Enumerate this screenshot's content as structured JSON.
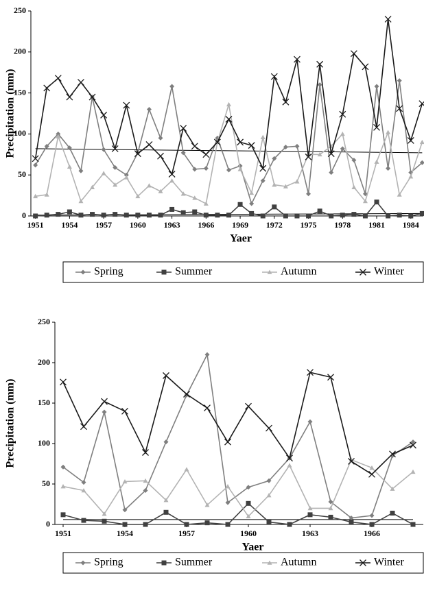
{
  "chart_data": [
    {
      "type": "line",
      "x_label": "Yaer",
      "y_label": "Precipitation (mm)",
      "x": [
        1951,
        1952,
        1953,
        1954,
        1955,
        1956,
        1957,
        1958,
        1959,
        1960,
        1961,
        1962,
        1963,
        1964,
        1965,
        1966,
        1967,
        1968,
        1969,
        1970,
        1971,
        1972,
        1973,
        1974,
        1975,
        1976,
        1977,
        1978,
        1979,
        1980,
        1981,
        1982,
        1983,
        1984,
        1985
      ],
      "series": [
        {
          "name": "Spring",
          "color": "#7f7f7f",
          "marker": "diamond",
          "values": [
            62,
            85,
            100,
            83,
            55,
            145,
            81,
            59,
            50,
            77,
            130,
            95,
            158,
            77,
            57,
            58,
            95,
            56,
            61,
            15,
            43,
            70,
            84,
            85,
            27,
            160,
            53,
            82,
            68,
            27,
            158,
            58,
            165,
            53,
            65
          ]
        },
        {
          "name": "Summer",
          "color": "#404040",
          "marker": "square",
          "values": [
            0,
            1,
            2,
            5,
            1,
            2,
            1,
            2,
            1,
            1,
            1,
            1,
            8,
            4,
            5,
            1,
            1,
            1,
            14,
            3,
            0,
            11,
            0,
            0,
            0,
            6,
            0,
            1,
            2,
            0,
            17,
            0,
            1,
            0,
            3
          ]
        },
        {
          "name": "Autumn",
          "color": "#b3b3b3",
          "marker": "triangle",
          "values": [
            24,
            26,
            97,
            60,
            18,
            35,
            52,
            38,
            47,
            24,
            37,
            30,
            43,
            27,
            22,
            15,
            90,
            136,
            57,
            28,
            96,
            38,
            36,
            42,
            75,
            75,
            85,
            100,
            35,
            18,
            66,
            102,
            26,
            48,
            90
          ]
        },
        {
          "name": "Winter",
          "color": "#1a1a1a",
          "marker": "x",
          "values": [
            70,
            156,
            168,
            145,
            163,
            145,
            123,
            82,
            135,
            76,
            87,
            73,
            51,
            107,
            85,
            75,
            90,
            118,
            90,
            86,
            58,
            170,
            139,
            191,
            72,
            185,
            76,
            124,
            198,
            182,
            108,
            240,
            131,
            92,
            137
          ]
        }
      ],
      "trendlines": [
        {
          "x": [
            1951,
            1985
          ],
          "values": [
            82,
            77
          ]
        },
        {
          "x": [
            1951,
            1985
          ],
          "values": [
            1,
            3
          ]
        }
      ],
      "xlim": [
        1950.6,
        1985.1
      ],
      "xticks": [
        1951,
        1954,
        1957,
        1960,
        1963,
        1966,
        1969,
        1972,
        1975,
        1978,
        1981,
        1984
      ],
      "ylim": [
        0,
        250
      ],
      "yticks": [
        0,
        50,
        100,
        150,
        200,
        250
      ],
      "legend": "bottom"
    },
    {
      "type": "line",
      "x_label": "Yaer",
      "y_label": "Precipitation (mm)",
      "x": [
        1951,
        1952,
        1953,
        1954,
        1955,
        1956,
        1957,
        1958,
        1959,
        1960,
        1961,
        1962,
        1963,
        1964,
        1965,
        1966,
        1967,
        1968
      ],
      "series": [
        {
          "name": "Spring",
          "color": "#7f7f7f",
          "marker": "diamond",
          "values": [
            71,
            52,
            139,
            18,
            42,
            102,
            160,
            210,
            27,
            46,
            54,
            82,
            127,
            28,
            8,
            11,
            85,
            102
          ]
        },
        {
          "name": "Summer",
          "color": "#404040",
          "marker": "square",
          "values": [
            12,
            5,
            4,
            0,
            0,
            15,
            0,
            2,
            0,
            26,
            3,
            0,
            12,
            9,
            3,
            0,
            14,
            0
          ]
        },
        {
          "name": "Autumn",
          "color": "#b3b3b3",
          "marker": "triangle",
          "values": [
            47,
            42,
            13,
            53,
            54,
            30,
            68,
            24,
            47,
            10,
            36,
            73,
            20,
            20,
            80,
            70,
            44,
            65
          ]
        },
        {
          "name": "Winter",
          "color": "#1a1a1a",
          "marker": "x",
          "values": [
            176,
            121,
            152,
            140,
            89,
            184,
            161,
            144,
            102,
            146,
            119,
            82,
            188,
            182,
            78,
            62,
            87,
            98
          ]
        }
      ],
      "trendlines": [
        {
          "x": [
            1951,
            1968
          ],
          "values": [
            6,
            6
          ]
        }
      ],
      "xlim": [
        1950.6,
        1968.5
      ],
      "xticks": [
        1951,
        1954,
        1957,
        1960,
        1963,
        1966
      ],
      "ylim": [
        0,
        250
      ],
      "yticks": [
        0,
        50,
        100,
        150,
        200,
        250
      ],
      "legend": "bottom"
    }
  ]
}
